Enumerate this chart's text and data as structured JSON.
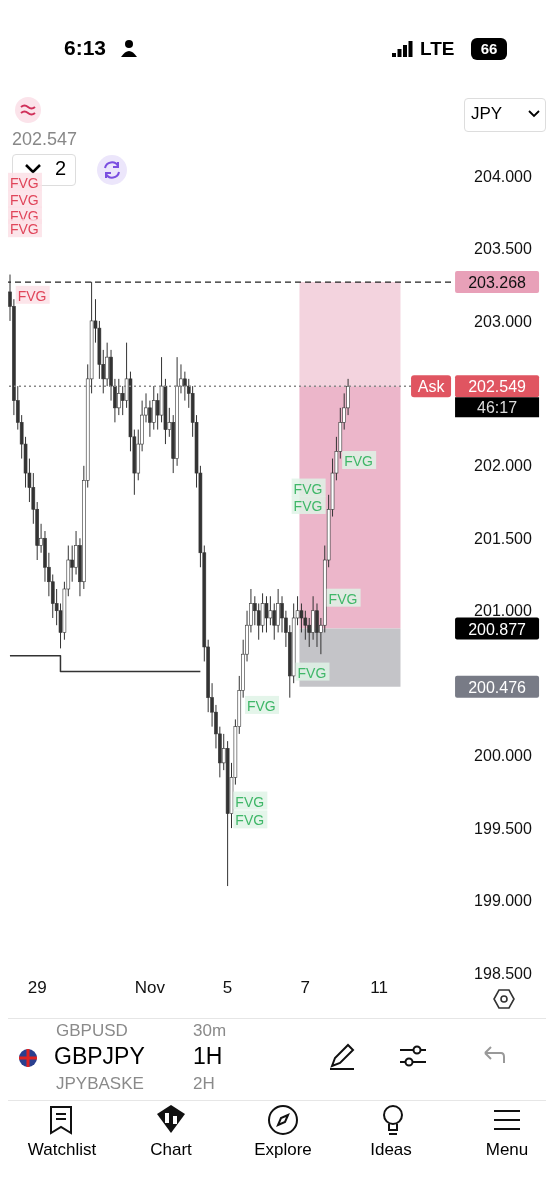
{
  "chart_data": {
    "type": "candlestick",
    "title": "GBPJPY",
    "subtitle": "1H",
    "categories": [
      null,
      null,
      null,
      null,
      null,
      null,
      null,
      "29",
      null,
      null,
      null,
      null,
      null,
      null,
      null,
      null,
      null,
      null,
      null,
      null,
      null,
      null,
      null,
      null,
      null,
      null,
      null,
      null,
      null,
      null,
      null,
      null,
      null,
      null,
      null,
      null,
      "Nov",
      null,
      null,
      null,
      null,
      null,
      null,
      null,
      null,
      null,
      null,
      null,
      null,
      null,
      null,
      null,
      null,
      null,
      null,
      null,
      "5",
      null,
      null,
      null,
      null,
      null,
      null,
      null,
      null,
      null,
      null,
      null,
      null,
      null,
      null,
      null,
      null,
      null,
      null,
      null,
      "7",
      null,
      null,
      null,
      null,
      null,
      null,
      null,
      null,
      null,
      null,
      null,
      null,
      null,
      null,
      null,
      null,
      null,
      null,
      "11",
      null,
      null,
      null,
      null,
      null,
      null,
      null,
      null,
      null,
      null,
      null,
      null,
      null,
      null,
      null,
      null,
      null,
      null
    ],
    "ylim": [
      198.5,
      204
    ],
    "yticks": [
      {
        "value": 198.5,
        "label": "198.500"
      },
      {
        "value": 199,
        "label": "199.000"
      },
      {
        "value": 199.5,
        "label": "199.500"
      },
      {
        "value": 200,
        "label": "200.000"
      },
      {
        "value": 201,
        "label": "201.000"
      },
      {
        "value": 201.5,
        "label": "201.500"
      },
      {
        "value": 202,
        "label": "202.000"
      },
      {
        "value": 203,
        "label": "203.000"
      },
      {
        "value": 203.5,
        "label": "203.500"
      },
      {
        "value": 204,
        "label": "204.000"
      }
    ],
    "series": [
      {
        "color": "#333333",
        "ohlc": [
          [
            203.2,
            203.32,
            203.0,
            203.1
          ],
          [
            203.1,
            203.15,
            202.35,
            202.45
          ],
          [
            202.45,
            202.55,
            202.25,
            202.3
          ],
          [
            202.3,
            202.35,
            202.05,
            202.15
          ],
          [
            202.15,
            202.2,
            201.85,
            201.95
          ],
          [
            201.95,
            202.05,
            201.75,
            201.85
          ],
          [
            201.85,
            201.95,
            201.6,
            201.7
          ],
          [
            201.7,
            201.75,
            201.35,
            201.45
          ],
          [
            201.45,
            201.6,
            201.4,
            201.5
          ],
          [
            201.5,
            201.55,
            201.2,
            201.3
          ],
          [
            201.3,
            201.4,
            201.1,
            201.2
          ],
          [
            201.2,
            201.25,
            200.95,
            201.05
          ],
          [
            201.05,
            201.15,
            200.9,
            201.0
          ],
          [
            201.0,
            201.05,
            200.74,
            200.85
          ],
          [
            200.85,
            201.2,
            200.8,
            201.15
          ],
          [
            201.15,
            201.45,
            201.1,
            201.35
          ],
          [
            201.35,
            201.45,
            201.2,
            201.3
          ],
          [
            201.3,
            201.55,
            201.25,
            201.45
          ],
          [
            201.45,
            201.5,
            201.1,
            201.2
          ],
          [
            201.2,
            202.0,
            201.15,
            201.9
          ],
          [
            201.9,
            202.7,
            201.85,
            202.6
          ],
          [
            202.6,
            203.27,
            202.5,
            203.0
          ],
          [
            203.0,
            203.15,
            202.85,
            202.95
          ],
          [
            202.95,
            203.0,
            202.6,
            202.7
          ],
          [
            202.7,
            202.8,
            202.5,
            202.6
          ],
          [
            202.6,
            202.85,
            202.55,
            202.75
          ],
          [
            202.75,
            202.8,
            202.45,
            202.55
          ],
          [
            202.55,
            202.6,
            202.3,
            202.4
          ],
          [
            202.4,
            202.6,
            202.35,
            202.5
          ],
          [
            202.5,
            202.55,
            202.35,
            202.45
          ],
          [
            202.45,
            202.85,
            202.4,
            202.6
          ],
          [
            202.6,
            202.65,
            202.1,
            202.2
          ],
          [
            202.2,
            202.25,
            201.8,
            201.95
          ],
          [
            201.95,
            202.25,
            201.9,
            202.15
          ],
          [
            202.15,
            202.45,
            202.1,
            202.35
          ],
          [
            202.35,
            202.5,
            202.3,
            202.4
          ],
          [
            202.4,
            202.45,
            202.2,
            202.3
          ],
          [
            202.3,
            202.55,
            202.25,
            202.45
          ],
          [
            202.45,
            202.5,
            202.25,
            202.35
          ],
          [
            202.35,
            202.75,
            202.3,
            202.55
          ],
          [
            202.55,
            202.6,
            202.15,
            202.25
          ],
          [
            202.25,
            202.4,
            202.2,
            202.3
          ],
          [
            202.3,
            202.35,
            201.95,
            202.05
          ],
          [
            202.05,
            202.75,
            202.0,
            202.55
          ],
          [
            202.55,
            202.7,
            202.5,
            202.6
          ],
          [
            202.6,
            202.65,
            202.45,
            202.55
          ],
          [
            202.55,
            202.6,
            202.4,
            202.5
          ],
          [
            202.5,
            202.55,
            202.2,
            202.3
          ],
          [
            202.3,
            202.35,
            201.85,
            201.95
          ],
          [
            201.95,
            202.0,
            201.3,
            201.4
          ],
          [
            201.4,
            201.45,
            200.65,
            200.75
          ],
          [
            200.75,
            200.8,
            200.3,
            200.4
          ],
          [
            200.4,
            200.5,
            200.2,
            200.3
          ],
          [
            200.3,
            200.35,
            200.05,
            200.15
          ],
          [
            200.15,
            200.2,
            199.85,
            199.95
          ],
          [
            199.95,
            200.15,
            199.9,
            200.05
          ],
          [
            200.05,
            200.1,
            199.1,
            199.6
          ],
          [
            199.6,
            199.95,
            199.5,
            199.85
          ],
          [
            199.85,
            200.25,
            199.8,
            200.2
          ],
          [
            200.2,
            200.55,
            200.15,
            200.45
          ],
          [
            200.45,
            200.8,
            200.4,
            200.7
          ],
          [
            200.7,
            201.0,
            200.65,
            200.9
          ],
          [
            200.9,
            201.15,
            200.85,
            201.05
          ],
          [
            201.05,
            201.1,
            200.9,
            201.0
          ],
          [
            201.0,
            201.05,
            200.8,
            200.9
          ],
          [
            200.9,
            201.12,
            200.85,
            201.05
          ],
          [
            201.05,
            201.1,
            200.85,
            200.95
          ],
          [
            200.95,
            201.1,
            200.9,
            201.0
          ],
          [
            201.0,
            201.05,
            200.8,
            200.9
          ],
          [
            200.9,
            201.15,
            200.85,
            201.05
          ],
          [
            201.05,
            201.1,
            200.85,
            200.95
          ],
          [
            200.95,
            201.0,
            200.75,
            200.85
          ],
          [
            200.85,
            200.9,
            200.4,
            200.55
          ],
          [
            200.55,
            201.05,
            200.5,
            200.95
          ],
          [
            200.95,
            201.1,
            200.9,
            201.0
          ],
          [
            201.0,
            201.05,
            200.85,
            200.95
          ],
          [
            200.95,
            201.0,
            200.8,
            200.9
          ],
          [
            200.9,
            200.95,
            200.75,
            200.85
          ],
          [
            200.85,
            201.1,
            200.8,
            201.0
          ],
          [
            201.0,
            201.05,
            200.75,
            200.85
          ],
          [
            200.85,
            200.95,
            200.7,
            200.9
          ],
          [
            200.9,
            201.45,
            200.85,
            201.35
          ],
          [
            201.35,
            201.8,
            201.3,
            201.7
          ],
          [
            201.7,
            202.05,
            201.65,
            201.95
          ],
          [
            201.95,
            202.2,
            201.9,
            202.1
          ],
          [
            202.1,
            202.4,
            202.05,
            202.3
          ],
          [
            202.3,
            202.5,
            202.25,
            202.4
          ],
          [
            202.4,
            202.6,
            202.35,
            202.549
          ],
          null,
          null,
          null,
          null,
          null,
          null,
          null,
          null,
          null,
          null,
          null,
          null,
          null,
          null,
          null,
          null,
          null,
          null,
          null,
          null,
          null,
          null,
          null,
          null,
          null,
          null
        ]
      },
      {
        "type": "step",
        "color": "#333333",
        "values": [
          200.69,
          200.69,
          200.69,
          200.69,
          200.69,
          200.69,
          200.69,
          200.69,
          200.69,
          200.69,
          200.69,
          200.69,
          200.69,
          200.58,
          200.58,
          200.58,
          200.58,
          200.58,
          200.58,
          200.58,
          200.58,
          200.58,
          200.58,
          200.58,
          200.58,
          200.58,
          200.58,
          200.58,
          200.58,
          200.58,
          200.58,
          200.58,
          200.58,
          200.58,
          200.58,
          200.58,
          200.58,
          200.58,
          200.58,
          200.58,
          200.58,
          200.58,
          200.58,
          200.58,
          200.58,
          200.58,
          200.58,
          200.58,
          200.58,
          200.58,
          null,
          null,
          null,
          null,
          null,
          null,
          null,
          null,
          null,
          null,
          null,
          null,
          null,
          null,
          null,
          null,
          null,
          null,
          null,
          null,
          null,
          null,
          null,
          null,
          null,
          null,
          null,
          null,
          null,
          null,
          null,
          null,
          null,
          null,
          null,
          null,
          null,
          null,
          null,
          null,
          null,
          null,
          null,
          null,
          null,
          null,
          null,
          null,
          null,
          null,
          null,
          null,
          null,
          null,
          null,
          null,
          null,
          null,
          null,
          null,
          null,
          null,
          null,
          null
        ]
      }
    ],
    "ref_lines": [
      {
        "axis": "y",
        "value": 203.268,
        "label": "203.268",
        "color": "#222222",
        "line_style": "dashed"
      },
      {
        "axis": "y",
        "value": 202.549,
        "label": "202.549",
        "color": "#888888",
        "line_style": "dotted"
      }
    ],
    "bands": [
      {
        "axis": "y",
        "from": 202.549,
        "to": 203.268,
        "color": "#f3d3de"
      },
      {
        "axis": "y",
        "from": 200.877,
        "to": 202.549,
        "color": "#ecb6ca"
      },
      {
        "axis": "y",
        "from": 200.476,
        "to": 200.877,
        "color": "#c4c4c8"
      }
    ],
    "annotations": [
      "200.877",
      "200.476",
      "FVG",
      "FVG",
      "FVG",
      "FVG",
      "FVG",
      "FVG",
      "FVG",
      "FVG",
      "FVG",
      "FVG",
      "FVG",
      "FVG",
      "FVG",
      "Ask",
      "46:17",
      "202.547",
      "2",
      "JPY",
      "6:13",
      "LTE",
      "66",
      "GBPUSD",
      "30m",
      "JPYBASKE",
      "2H",
      "Watchlist",
      "Chart",
      "Explore",
      "Ideas",
      "Menu"
    ]
  }
}
